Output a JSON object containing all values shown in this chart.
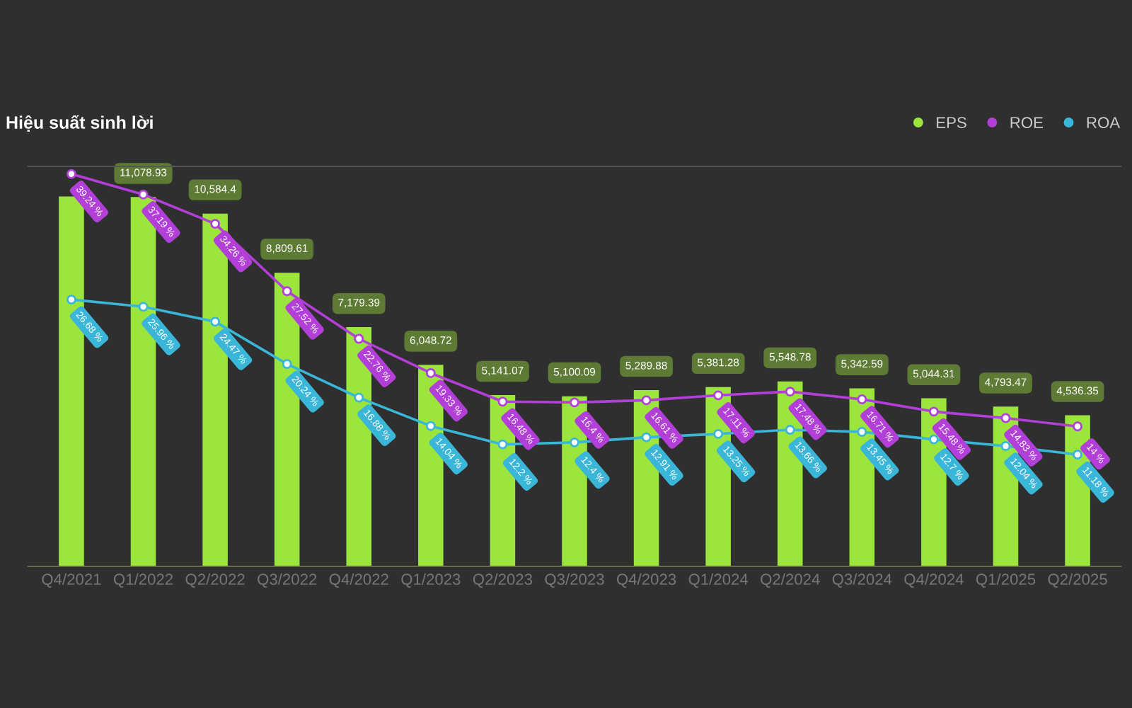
{
  "chart_data": {
    "type": "bar",
    "title": "Hiệu suất sinh lời",
    "categories": [
      "Q4/2021",
      "Q1/2022",
      "Q2/2022",
      "Q3/2022",
      "Q4/2022",
      "Q1/2023",
      "Q2/2023",
      "Q3/2023",
      "Q4/2023",
      "Q1/2024",
      "Q2/2024",
      "Q3/2024",
      "Q4/2024",
      "Q1/2025",
      "Q2/2025"
    ],
    "series": [
      {
        "name": "EPS",
        "color": "#9be53d",
        "values": [
          11100,
          11078.93,
          10584.4,
          8809.61,
          7179.39,
          6048.72,
          5141.07,
          5100.09,
          5289.88,
          5381.28,
          5548.78,
          5342.59,
          5044.31,
          4793.47,
          4536.35
        ],
        "value_labels": [
          null,
          "11,078.93",
          "10,584.4",
          "8,809.61",
          "7,179.39",
          "6,048.72",
          "5,141.07",
          "5,100.09",
          "5,289.88",
          "5,381.28",
          "5,548.78",
          "5,342.59",
          "5,044.31",
          "4,793.47",
          "4,536.35"
        ]
      },
      {
        "name": "ROE",
        "type": "line",
        "axis": "y2",
        "color": "#b23fd8",
        "values": [
          39.24,
          37.19,
          34.26,
          27.52,
          22.76,
          19.33,
          16.48,
          16.4,
          16.61,
          17.11,
          17.48,
          16.71,
          15.48,
          14.83,
          14
        ],
        "value_labels": [
          "39.24 %",
          "37.19 %",
          "34.26 %",
          "27.52 %",
          "22.76 %",
          "19.33 %",
          "16.48 %",
          "16.4 %",
          "16.61 %",
          "17.11 %",
          "17.48 %",
          "16.71 %",
          "15.48 %",
          "14.83 %",
          "14 %"
        ]
      },
      {
        "name": "ROA",
        "type": "line",
        "axis": "y2",
        "color": "#3ab6d8",
        "values": [
          26.68,
          25.96,
          24.47,
          20.24,
          16.88,
          14.04,
          12.2,
          12.4,
          12.91,
          13.25,
          13.66,
          13.45,
          12.7,
          12.04,
          11.18
        ],
        "value_labels": [
          "26.68 %",
          "25.96 %",
          "24.47 %",
          "20.24 %",
          "16.88 %",
          "14.04 %",
          "12.2 %",
          "12.4 %",
          "12.91 %",
          "13.25 %",
          "13.66 %",
          "13.45 %",
          "12.7 %",
          "12.04 %",
          "11.18 %"
        ]
      }
    ],
    "ylim": [
      0,
      12000
    ],
    "y2lim": [
      0,
      40
    ],
    "tick_labels": "x",
    "grid": false,
    "legend": "top right",
    "marker": "circle",
    "line_style": "solid"
  }
}
